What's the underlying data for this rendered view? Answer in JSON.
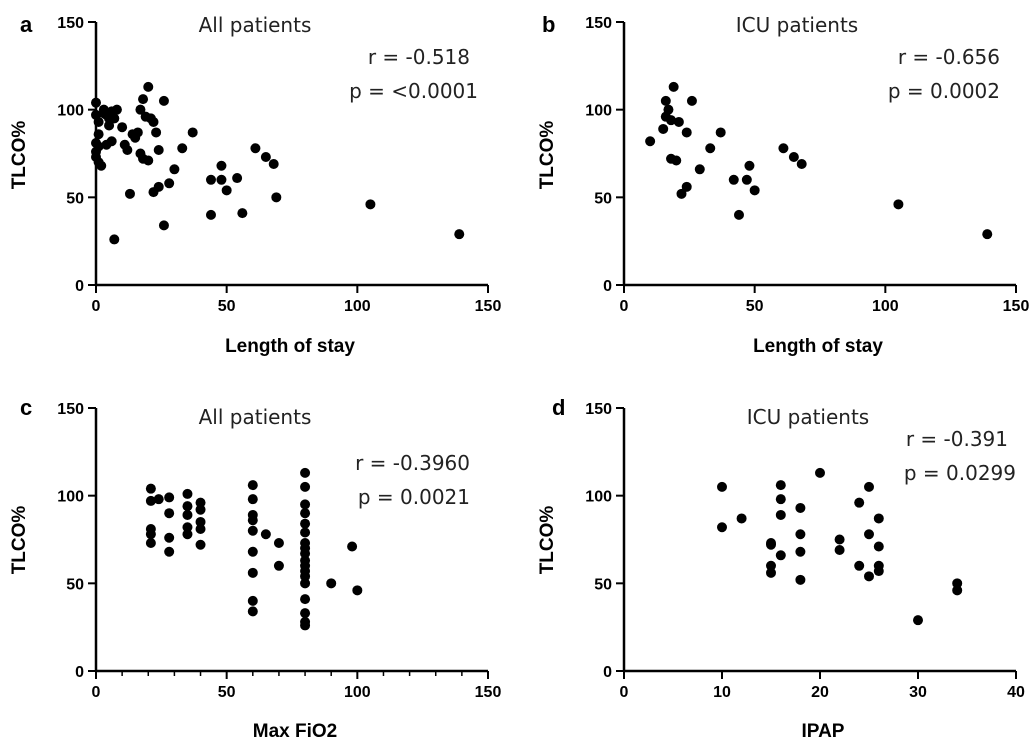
{
  "chart_data": [
    {
      "type": "scatter",
      "panel": "a",
      "title": "All patients",
      "stats": [
        "r = -0.518",
        "p = <0.0001"
      ],
      "xlabel": "Length of stay",
      "ylabel": "TLCO%",
      "xlim": [
        0,
        150
      ],
      "ylim": [
        0,
        150
      ],
      "xticks": [
        0,
        50,
        100,
        150
      ],
      "yticks": [
        0,
        50,
        100,
        150
      ],
      "points": [
        [
          0,
          104
        ],
        [
          0,
          97
        ],
        [
          1,
          93
        ],
        [
          1,
          86
        ],
        [
          0,
          81
        ],
        [
          1,
          79
        ],
        [
          0,
          76
        ],
        [
          0,
          73
        ],
        [
          1,
          70
        ],
        [
          2,
          68
        ],
        [
          3,
          100
        ],
        [
          4,
          97
        ],
        [
          5,
          95
        ],
        [
          5,
          91
        ],
        [
          6,
          99
        ],
        [
          7,
          95
        ],
        [
          8,
          100
        ],
        [
          6,
          82
        ],
        [
          4,
          80
        ],
        [
          3,
          98
        ],
        [
          10,
          90
        ],
        [
          11,
          80
        ],
        [
          12,
          77
        ],
        [
          14,
          86
        ],
        [
          15,
          84
        ],
        [
          17,
          100
        ],
        [
          18,
          106
        ],
        [
          19,
          96
        ],
        [
          20,
          113
        ],
        [
          21,
          95
        ],
        [
          16,
          87
        ],
        [
          17,
          75
        ],
        [
          18,
          72
        ],
        [
          20,
          71
        ],
        [
          22,
          93
        ],
        [
          23,
          87
        ],
        [
          24,
          77
        ],
        [
          22,
          53
        ],
        [
          24,
          56
        ],
        [
          26,
          105
        ],
        [
          28,
          58
        ],
        [
          30,
          66
        ],
        [
          33,
          78
        ],
        [
          37,
          87
        ],
        [
          44,
          60
        ],
        [
          48,
          68
        ],
        [
          48,
          60
        ],
        [
          50,
          54
        ],
        [
          54,
          61
        ],
        [
          56,
          41
        ],
        [
          44,
          40
        ],
        [
          61,
          78
        ],
        [
          65,
          73
        ],
        [
          68,
          69
        ],
        [
          69,
          50
        ],
        [
          13,
          52
        ],
        [
          7,
          26
        ],
        [
          26,
          34
        ],
        [
          105,
          46
        ],
        [
          139,
          29
        ]
      ]
    },
    {
      "type": "scatter",
      "panel": "b",
      "title": "ICU patients",
      "stats": [
        "r = -0.656",
        "p = 0.0002"
      ],
      "xlabel": "Length of stay",
      "ylabel": "TLCO%",
      "xlim": [
        0,
        150
      ],
      "ylim": [
        0,
        150
      ],
      "xticks": [
        0,
        50,
        100,
        150
      ],
      "yticks": [
        0,
        50,
        100,
        150
      ],
      "points": [
        [
          10,
          82
        ],
        [
          15,
          89
        ],
        [
          16,
          96
        ],
        [
          16,
          105
        ],
        [
          17,
          100
        ],
        [
          18,
          94
        ],
        [
          18,
          72
        ],
        [
          19,
          113
        ],
        [
          20,
          71
        ],
        [
          21,
          93
        ],
        [
          22,
          52
        ],
        [
          24,
          56
        ],
        [
          24,
          87
        ],
        [
          26,
          105
        ],
        [
          29,
          66
        ],
        [
          33,
          78
        ],
        [
          37,
          87
        ],
        [
          42,
          60
        ],
        [
          44,
          40
        ],
        [
          47,
          60
        ],
        [
          48,
          68
        ],
        [
          50,
          54
        ],
        [
          61,
          78
        ],
        [
          65,
          73
        ],
        [
          68,
          69
        ],
        [
          105,
          46
        ],
        [
          139,
          29
        ]
      ]
    },
    {
      "type": "scatter",
      "panel": "c",
      "title": "All patients",
      "stats": [
        "r = -0.3960",
        "p = 0.0021"
      ],
      "xlabel": "Max FiO2",
      "ylabel": "TLCO%",
      "xlim": [
        0,
        150
      ],
      "ylim": [
        0,
        150
      ],
      "xticks": [
        0,
        50,
        100,
        150
      ],
      "yticks": [
        0,
        50,
        100,
        150
      ],
      "points": [
        [
          21,
          104
        ],
        [
          21,
          97
        ],
        [
          21,
          81
        ],
        [
          21,
          78
        ],
        [
          21,
          73
        ],
        [
          24,
          98
        ],
        [
          28,
          99
        ],
        [
          28,
          90
        ],
        [
          28,
          76
        ],
        [
          28,
          68
        ],
        [
          35,
          101
        ],
        [
          35,
          94
        ],
        [
          35,
          89
        ],
        [
          35,
          82
        ],
        [
          35,
          78
        ],
        [
          40,
          96
        ],
        [
          40,
          92
        ],
        [
          40,
          85
        ],
        [
          40,
          81
        ],
        [
          40,
          72
        ],
        [
          60,
          106
        ],
        [
          60,
          98
        ],
        [
          60,
          89
        ],
        [
          60,
          86
        ],
        [
          60,
          80
        ],
        [
          60,
          68
        ],
        [
          60,
          56
        ],
        [
          60,
          40
        ],
        [
          60,
          34
        ],
        [
          65,
          78
        ],
        [
          70,
          73
        ],
        [
          70,
          60
        ],
        [
          80,
          113
        ],
        [
          80,
          105
        ],
        [
          80,
          95
        ],
        [
          80,
          90
        ],
        [
          80,
          84
        ],
        [
          80,
          79
        ],
        [
          80,
          73
        ],
        [
          80,
          70
        ],
        [
          80,
          67
        ],
        [
          80,
          63
        ],
        [
          80,
          60
        ],
        [
          80,
          57
        ],
        [
          80,
          54
        ],
        [
          80,
          50
        ],
        [
          80,
          41
        ],
        [
          80,
          33
        ],
        [
          80,
          28
        ],
        [
          80,
          26
        ],
        [
          90,
          50
        ],
        [
          98,
          71
        ],
        [
          100,
          46
        ]
      ]
    },
    {
      "type": "scatter",
      "panel": "d",
      "title": "ICU patients",
      "stats": [
        "r = -0.391",
        "p = 0.0299"
      ],
      "xlabel": "IPAP",
      "ylabel": "TLCO%",
      "xlim": [
        0,
        40
      ],
      "ylim": [
        0,
        150
      ],
      "xticks": [
        0,
        10,
        20,
        30,
        40
      ],
      "yticks": [
        0,
        50,
        100,
        150
      ],
      "points": [
        [
          10,
          105
        ],
        [
          10,
          82
        ],
        [
          12,
          87
        ],
        [
          15,
          73
        ],
        [
          15,
          72
        ],
        [
          15,
          60
        ],
        [
          15,
          56
        ],
        [
          16,
          106
        ],
        [
          16,
          98
        ],
        [
          16,
          89
        ],
        [
          16,
          66
        ],
        [
          18,
          93
        ],
        [
          18,
          78
        ],
        [
          18,
          68
        ],
        [
          18,
          52
        ],
        [
          20,
          113
        ],
        [
          22,
          75
        ],
        [
          22,
          69
        ],
        [
          24,
          96
        ],
        [
          24,
          60
        ],
        [
          25,
          105
        ],
        [
          25,
          78
        ],
        [
          25,
          54
        ],
        [
          26,
          87
        ],
        [
          26,
          71
        ],
        [
          26,
          60
        ],
        [
          26,
          57
        ],
        [
          30,
          29
        ],
        [
          34,
          50
        ],
        [
          34,
          46
        ]
      ]
    }
  ]
}
